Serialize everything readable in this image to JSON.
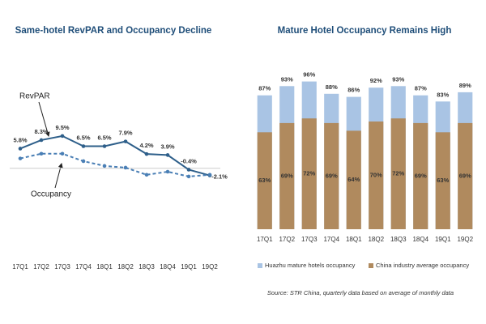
{
  "chart_data": [
    {
      "type": "line",
      "title": "Same-hotel RevPAR and Occupancy Decline",
      "categories": [
        "17Q1",
        "17Q2",
        "17Q3",
        "17Q4",
        "18Q1",
        "18Q2",
        "18Q3",
        "18Q4",
        "19Q1",
        "19Q2"
      ],
      "ylim": [
        -6,
        14
      ],
      "annotations": [
        "RevPAR",
        "Occupancy"
      ],
      "series": [
        {
          "name": "RevPAR",
          "color": "#2e5f8a",
          "dash": false,
          "values": [
            5.8,
            8.3,
            9.5,
            6.5,
            6.5,
            7.9,
            4.2,
            3.9,
            -0.4,
            -2.1
          ],
          "value_labels": [
            "5.8%",
            "8.3%",
            "9.5%",
            "6.5%",
            "6.5%",
            "7.9%",
            "4.2%",
            "3.9%",
            "-0.4%",
            "-2.1%"
          ]
        },
        {
          "name": "Occupancy",
          "color": "#4a7fb5",
          "dash": true,
          "values": [
            2.9,
            4.3,
            4.3,
            2.1,
            0.7,
            0.2,
            -1.9,
            -1.0,
            -2.4,
            -1.9
          ]
        }
      ]
    },
    {
      "type": "bar",
      "title": "Mature Hotel Occupancy Remains High",
      "categories": [
        "17Q1",
        "17Q2",
        "17Q3",
        "17Q4",
        "18Q1",
        "18Q2",
        "18Q3",
        "18Q4",
        "19Q1",
        "19Q2"
      ],
      "ylim": [
        0,
        100
      ],
      "legend": "bottom",
      "source": "Source: STR China, quarterly data based on average of monthly data",
      "series": [
        {
          "name": "Huazhu mature hotels occupancy",
          "color": "#a9c4e4",
          "values": [
            87,
            93,
            96,
            88,
            86,
            92,
            93,
            87,
            83,
            89
          ],
          "value_labels": [
            "87%",
            "93%",
            "96%",
            "88%",
            "86%",
            "92%",
            "93%",
            "87%",
            "83%",
            "89%"
          ]
        },
        {
          "name": "China industry average occupancy",
          "color": "#b08a5e",
          "values": [
            63,
            69,
            72,
            69,
            64,
            70,
            72,
            69,
            63,
            69
          ],
          "value_labels": [
            "63%",
            "69%",
            "72%",
            "69%",
            "64%",
            "70%",
            "72%",
            "69%",
            "63%",
            "69%"
          ]
        }
      ]
    }
  ]
}
